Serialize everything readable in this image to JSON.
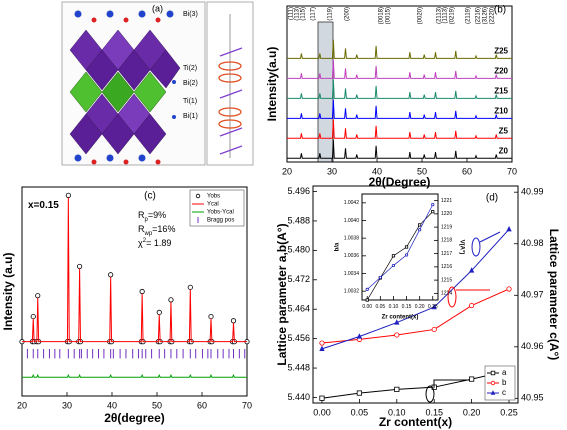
{
  "panel_a": {
    "label": "(a)",
    "atoms": [
      "Bi(3)",
      "Ti(2)",
      "Bi(2)",
      "Ti(1)",
      "Bi(1)"
    ]
  },
  "chart_data": [
    {
      "type": "line",
      "label": "(b)",
      "xlabel": "2θ(Degree)",
      "ylabel": "Intensity(a.u)",
      "x": [
        20,
        23,
        23.2,
        23.4,
        27.1,
        27.3,
        27.5,
        30.1,
        30.3,
        30.5,
        32.8,
        33,
        33.2,
        35.3,
        35.5,
        35.7,
        39.6,
        39.8,
        40,
        47.1,
        47.3,
        47.5,
        50.3,
        50.5,
        50.7,
        52.8,
        53,
        53.2,
        57.3,
        57.5,
        57.7,
        61.8,
        62,
        62.2,
        66.3,
        66.5,
        66.7,
        70
      ],
      "xlim": [
        20,
        70
      ],
      "xticks": [
        20,
        30,
        40,
        50,
        60,
        70
      ],
      "ylim": [
        0,
        125
      ],
      "direct_labels": true,
      "annotations": [
        "(111)",
        "(113)",
        "(115)",
        "(117)",
        "(119)",
        "(200)",
        "(0018)",
        "(0015)",
        "(0020)",
        "(2113)",
        "(1113)",
        "(0219)",
        "(2119)",
        "(2216)",
        "(3126)",
        "(2220)"
      ],
      "series": [
        {
          "name": "Z0",
          "color": "#000000",
          "values": [
            3,
            3,
            7,
            3,
            3,
            7,
            3,
            3,
            18,
            3,
            3,
            11,
            3,
            3,
            6,
            3,
            3,
            13,
            3,
            3,
            8,
            3,
            3,
            6,
            3,
            3,
            8,
            3,
            3,
            9,
            3,
            3,
            5,
            3,
            3,
            6,
            3,
            3
          ]
        },
        {
          "name": "Z5",
          "color": "#ff0000",
          "values": [
            19,
            19,
            23,
            19,
            19,
            23,
            19,
            19,
            34,
            19,
            19,
            27,
            19,
            19,
            22,
            19,
            19,
            29,
            19,
            19,
            24,
            19,
            19,
            22,
            19,
            19,
            24,
            19,
            19,
            25,
            19,
            19,
            21,
            19,
            19,
            22,
            19,
            19
          ]
        },
        {
          "name": "Z10",
          "color": "#0000ff",
          "values": [
            35,
            35,
            39,
            35,
            35,
            39,
            35,
            35,
            50,
            35,
            35,
            43,
            35,
            35,
            38,
            35,
            35,
            45,
            35,
            35,
            40,
            35,
            35,
            38,
            35,
            35,
            40,
            35,
            35,
            41,
            35,
            35,
            37,
            35,
            35,
            38,
            35,
            35
          ]
        },
        {
          "name": "Z15",
          "color": "#1a8c6c",
          "values": [
            51,
            51,
            55,
            51,
            51,
            55,
            51,
            51,
            66,
            51,
            51,
            59,
            51,
            51,
            54,
            51,
            51,
            61,
            51,
            51,
            56,
            51,
            51,
            54,
            51,
            51,
            56,
            51,
            51,
            57,
            51,
            51,
            53,
            51,
            51,
            54,
            51,
            51
          ]
        },
        {
          "name": "Z20",
          "color": "#c040c0",
          "values": [
            67,
            67,
            71,
            67,
            67,
            71,
            67,
            67,
            82,
            67,
            67,
            75,
            67,
            67,
            70,
            67,
            67,
            77,
            67,
            67,
            72,
            67,
            67,
            70,
            67,
            67,
            72,
            67,
            67,
            73,
            67,
            67,
            69,
            67,
            67,
            70,
            67,
            67
          ]
        },
        {
          "name": "Z25",
          "color": "#6b6b00",
          "values": [
            83,
            83,
            87,
            83,
            83,
            87,
            83,
            83,
            98,
            83,
            83,
            91,
            83,
            83,
            86,
            83,
            83,
            93,
            83,
            83,
            88,
            83,
            83,
            86,
            83,
            83,
            88,
            83,
            83,
            89,
            83,
            83,
            85,
            83,
            83,
            86,
            83,
            83
          ]
        }
      ]
    },
    {
      "type": "line",
      "label": "(c)",
      "xlabel": "2θ(degree)",
      "ylabel": "Intensity (a.u)",
      "x": [
        20,
        22.3,
        22.5,
        22.7,
        23.3,
        23.5,
        23.7,
        30.1,
        30.3,
        30.5,
        32.6,
        32.8,
        33,
        39.5,
        39.7,
        39.9,
        46.5,
        46.7,
        46.9,
        50.3,
        50.5,
        50.7,
        52.9,
        53.1,
        53.3,
        57.2,
        57.4,
        57.6,
        61.8,
        62,
        62.2,
        66.8,
        67,
        67.2,
        70
      ],
      "xlim": [
        20,
        70
      ],
      "xticks": [
        20,
        30,
        40,
        50,
        60,
        70
      ],
      "ylim": [
        0,
        100
      ],
      "legend": "upper right",
      "annotations": [
        {
          "text": "x=0.15"
        },
        {
          "text": "R",
          "sub": "p",
          "tail": "=9%"
        },
        {
          "text": "R",
          "sub": "wp",
          "tail": "=16%"
        },
        {
          "text": "χ",
          "sup": "2",
          "tail": "= 1.89"
        }
      ],
      "series": [
        {
          "name": "Yobs",
          "color": "#000000",
          "style": "markers",
          "marker": "circle",
          "values": [
            26,
            26,
            38,
            26,
            26,
            48,
            26,
            26,
            96,
            26,
            26,
            62,
            26,
            26,
            58,
            26,
            26,
            50,
            26,
            26,
            40,
            26,
            26,
            46,
            26,
            26,
            52,
            26,
            26,
            38,
            26,
            26,
            36,
            26,
            26
          ]
        },
        {
          "name": "Ycal",
          "color": "#ff0000",
          "style": "line",
          "values": [
            26,
            26,
            37,
            26,
            26,
            47,
            26,
            26,
            95,
            26,
            26,
            61,
            26,
            26,
            57,
            26,
            26,
            49,
            26,
            26,
            39,
            26,
            26,
            45,
            26,
            26,
            51,
            26,
            26,
            37,
            26,
            26,
            35,
            26,
            26
          ]
        },
        {
          "name": "Yobs-Ycal",
          "color": "#00a000",
          "style": "line",
          "values": [
            9,
            9,
            10,
            9,
            9,
            10,
            9,
            9,
            10,
            9,
            9,
            10,
            9,
            9,
            10,
            9,
            9,
            10,
            9,
            9,
            10,
            9,
            9,
            10,
            9,
            9,
            10,
            9,
            9,
            10,
            9,
            9,
            10,
            9,
            9
          ]
        },
        {
          "name": "Bragg pos",
          "color": "#7030c0",
          "style": "ticks",
          "x": [
            21.2,
            22.5,
            23.5,
            24.8,
            26.1,
            27.3,
            28.4,
            30.3,
            31.6,
            32.8,
            33.2,
            34.5,
            35.7,
            37,
            38.2,
            39.7,
            40.3,
            41.8,
            43.1,
            44.6,
            45.9,
            46.7,
            47.5,
            48.8,
            50.5,
            51.7,
            53.1,
            54.4,
            55.8,
            57.4,
            58.6,
            60.1,
            61.3,
            62,
            63.5,
            64.7,
            66,
            67,
            68.3,
            69.5
          ]
        }
      ]
    },
    {
      "type": "line",
      "label": "(d)",
      "xlabel": "Zr content(x)",
      "ylabel": "Lattice parameter a,b(A°)",
      "y2label": "Lattice parameter c(A°)",
      "x": [
        0,
        0.05,
        0.1,
        0.15,
        0.2,
        0.25
      ],
      "xlim": [
        -0.012,
        0.262
      ],
      "xticks": [
        {
          "value": 0,
          "label": "0.00"
        },
        0.05,
        {
          "value": 0.1,
          "label": "0.10"
        },
        0.15,
        {
          "value": 0.2,
          "label": "0.20"
        },
        0.25
      ],
      "ylim": [
        5.4385,
        5.4975
      ],
      "yticks": [
        {
          "value": 5.44,
          "label": "5.440"
        },
        5.448,
        5.456,
        5.464,
        5.472,
        {
          "value": 5.48,
          "label": "5.480"
        },
        5.488,
        5.496
      ],
      "y2lim": [
        40.9491,
        40.9912
      ],
      "y2ticks": [
        40.95,
        40.96,
        40.97,
        40.98,
        40.99
      ],
      "legend": "lower right",
      "series": [
        {
          "name": "a",
          "color": "#000000",
          "marker": "square",
          "values": [
            5.4398,
            5.4412,
            5.4422,
            5.4428,
            5.445,
            5.4473
          ]
        },
        {
          "name": "b",
          "color": "#ff0000",
          "marker": "circle",
          "values": [
            5.4548,
            5.4558,
            5.457,
            5.4585,
            5.465,
            5.4695
          ]
        },
        {
          "name": "c",
          "color": "#2020c0",
          "marker": "triangle",
          "axis": "y2",
          "values": [
            40.9596,
            40.962,
            40.9647,
            40.9677,
            40.9748,
            40.9828
          ]
        }
      ]
    },
    {
      "type": "line",
      "xlabel": "Zr content(x)",
      "ylabel": "b/a",
      "y2label": "V(A°)",
      "x": [
        0,
        0.05,
        0.1,
        0.15,
        0.2,
        0.25
      ],
      "xlim": [
        -0.02,
        0.27
      ],
      "xticks": [
        {
          "value": 0,
          "label": "0.00"
        },
        0.05,
        {
          "value": 0.1,
          "label": "0.10"
        },
        0.15,
        {
          "value": 0.2,
          "label": "0.20"
        },
        0.25
      ],
      "ylim": [
        1.0031,
        1.0043
      ],
      "yticks": [
        1.0032,
        1.0034,
        1.0036,
        1.0038,
        {
          "value": 1.004,
          "label": "1.0040"
        },
        1.0042
      ],
      "y2lim": [
        1213.5,
        1221.5
      ],
      "y2ticks": [
        1214,
        1215,
        1216,
        1217,
        1218,
        1219,
        1220,
        1221
      ],
      "series": [
        {
          "color": "#000000",
          "marker": "square",
          "values": [
            1.0031,
            1.00335,
            1.0036,
            1.0037,
            1.00395,
            1.0041
          ]
        },
        {
          "color": "#2020c0",
          "marker": "circle",
          "axis": "y2",
          "values": [
            1214.3,
            1215.2,
            1216.1,
            1216.9,
            1218.8,
            1220.7
          ]
        }
      ]
    }
  ]
}
